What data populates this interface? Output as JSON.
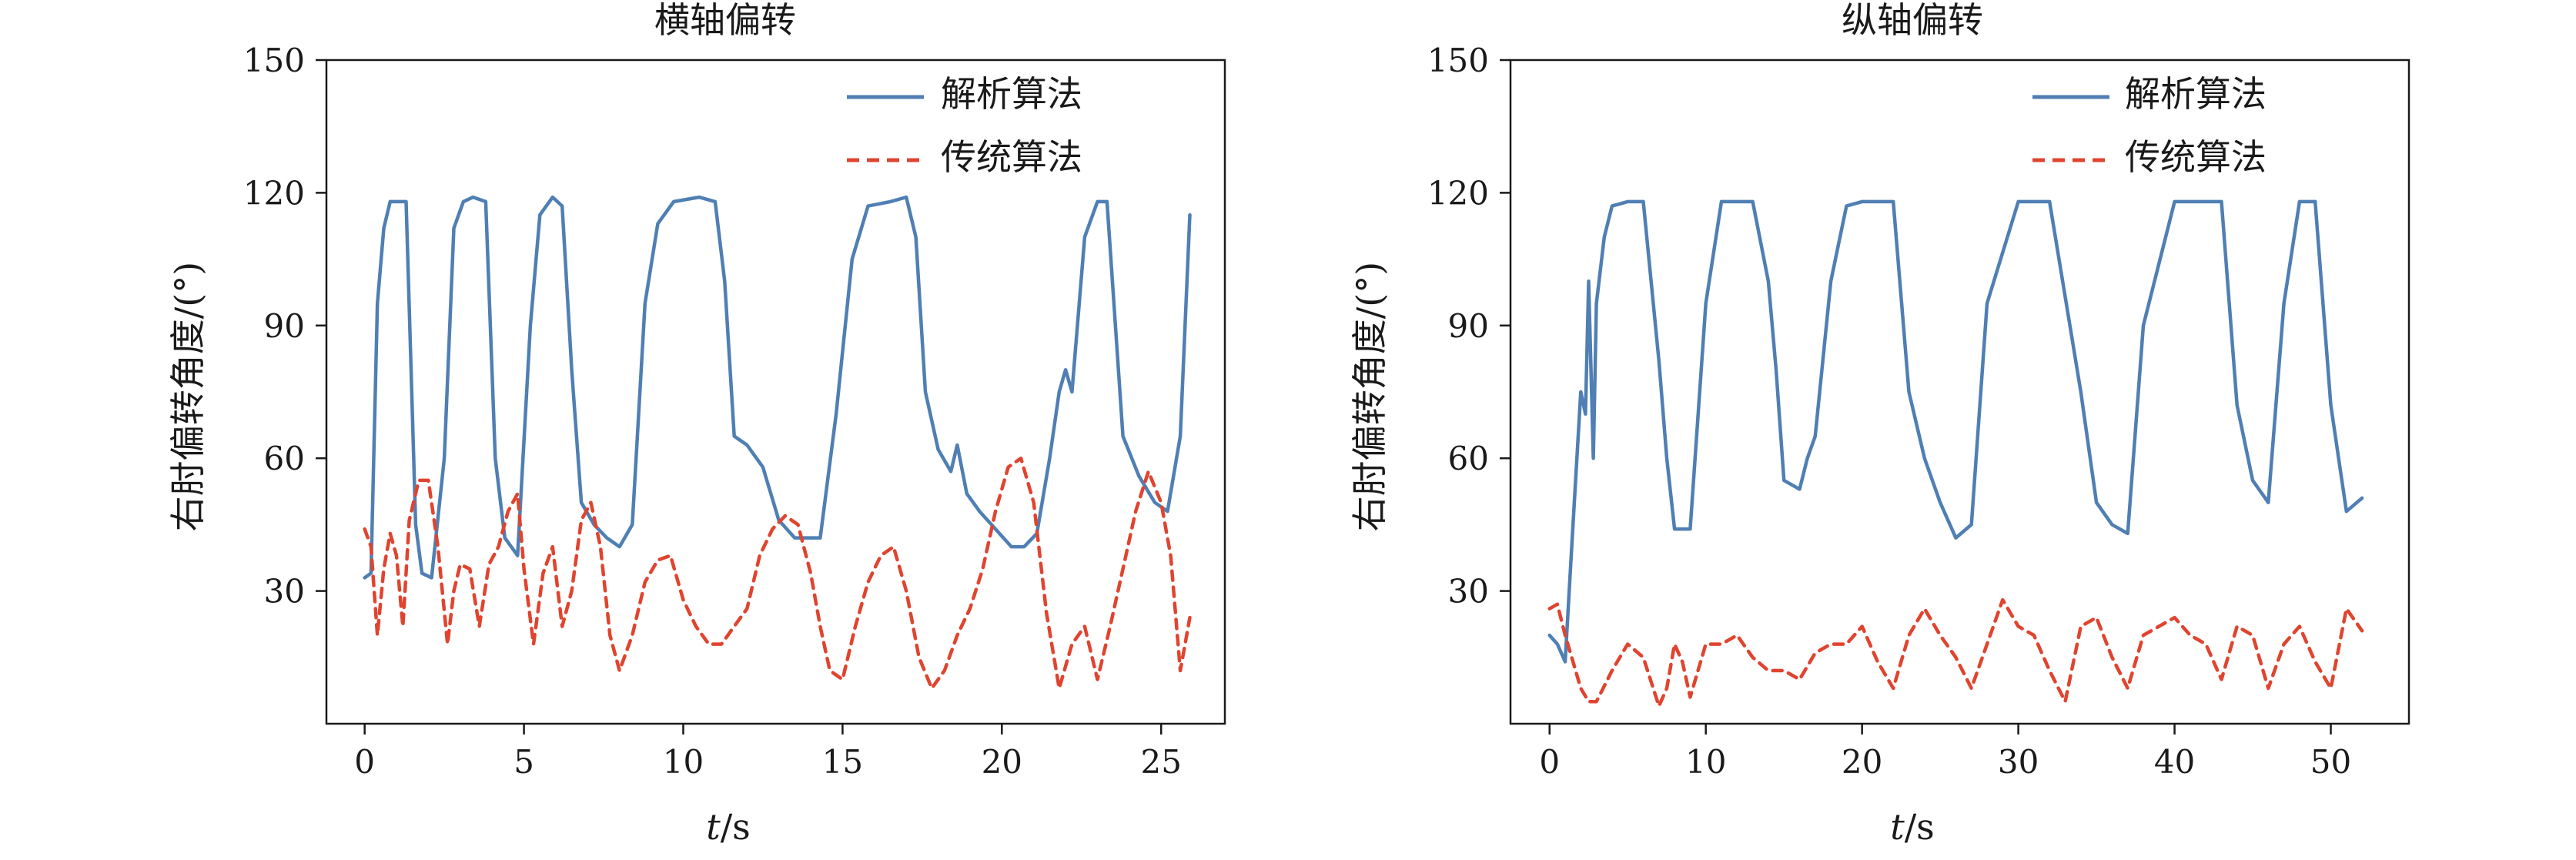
{
  "chart_data": [
    {
      "type": "line",
      "title": "横轴偏转",
      "xlabel_italic": "t",
      "xlabel_unit": "/s",
      "ylabel": "右肘偏转角度/(°)",
      "xlim": [
        -1.2,
        27.0
      ],
      "ylim": [
        0,
        150
      ],
      "xticks": [
        0,
        5,
        10,
        15,
        20,
        25
      ],
      "yticks": [
        30,
        60,
        90,
        120,
        150
      ],
      "legend_position": "top-right",
      "series": [
        {
          "name": "解析算法",
          "color": "#4f7fb3",
          "style": "solid",
          "x": [
            0,
            0.2,
            0.4,
            0.6,
            0.8,
            1.0,
            1.3,
            1.6,
            1.8,
            2.1,
            2.5,
            2.8,
            3.1,
            3.4,
            3.8,
            4.1,
            4.4,
            4.8,
            5.2,
            5.5,
            5.9,
            6.2,
            6.5,
            6.8,
            7.2,
            7.6,
            8.0,
            8.4,
            8.8,
            9.2,
            9.7,
            10.5,
            11.0,
            11.3,
            11.6,
            12.0,
            12.5,
            13.0,
            13.5,
            14.0,
            14.3,
            14.8,
            15.3,
            15.8,
            16.5,
            17.0,
            17.3,
            17.6,
            18.0,
            18.4,
            18.6,
            18.9,
            19.3,
            19.8,
            20.3,
            20.7,
            21.1,
            21.5,
            21.8,
            22.0,
            22.2,
            22.6,
            23.0,
            23.3,
            23.8,
            24.3,
            24.8,
            25.2,
            25.6,
            25.9
          ],
          "y": [
            33,
            34,
            95,
            112,
            118,
            118,
            118,
            45,
            34,
            33,
            60,
            112,
            118,
            119,
            118,
            60,
            42,
            38,
            90,
            115,
            119,
            117,
            80,
            50,
            45,
            42,
            40,
            45,
            95,
            113,
            118,
            119,
            118,
            100,
            65,
            63,
            58,
            46,
            42,
            42,
            42,
            70,
            105,
            117,
            118,
            119,
            110,
            75,
            62,
            57,
            63,
            52,
            48,
            44,
            40,
            40,
            43,
            60,
            75,
            80,
            75,
            110,
            118,
            118,
            65,
            56,
            50,
            48,
            65,
            115
          ]
        },
        {
          "name": "传统算法",
          "color": "#e0442f",
          "style": "dashed",
          "x": [
            0,
            0.2,
            0.4,
            0.6,
            0.8,
            1.0,
            1.2,
            1.4,
            1.7,
            2.0,
            2.3,
            2.6,
            2.8,
            3.0,
            3.3,
            3.6,
            3.9,
            4.2,
            4.5,
            4.8,
            5.0,
            5.3,
            5.6,
            5.9,
            6.2,
            6.5,
            6.8,
            7.1,
            7.4,
            7.7,
            8.0,
            8.4,
            8.8,
            9.2,
            9.6,
            10.0,
            10.4,
            10.8,
            11.2,
            11.6,
            12.0,
            12.4,
            12.8,
            13.2,
            13.6,
            14.0,
            14.3,
            14.6,
            15.0,
            15.4,
            15.8,
            16.2,
            16.6,
            17.0,
            17.4,
            17.8,
            18.2,
            18.6,
            19.0,
            19.4,
            19.8,
            20.2,
            20.6,
            21.0,
            21.4,
            21.8,
            22.2,
            22.6,
            23.0,
            23.4,
            23.8,
            24.2,
            24.6,
            25.0,
            25.3,
            25.6,
            25.9
          ],
          "y": [
            44,
            40,
            20,
            35,
            43,
            38,
            22,
            46,
            55,
            55,
            40,
            18,
            30,
            36,
            35,
            22,
            36,
            40,
            48,
            52,
            35,
            18,
            34,
            40,
            22,
            30,
            46,
            50,
            40,
            20,
            12,
            20,
            32,
            37,
            38,
            28,
            22,
            18,
            18,
            22,
            26,
            38,
            44,
            47,
            45,
            34,
            22,
            12,
            10,
            22,
            32,
            38,
            40,
            30,
            15,
            8,
            12,
            20,
            26,
            35,
            48,
            58,
            60,
            50,
            25,
            8,
            18,
            22,
            10,
            22,
            35,
            48,
            57,
            50,
            38,
            12,
            24
          ]
        }
      ]
    },
    {
      "type": "line",
      "title": "纵轴偏转",
      "xlabel_italic": "t",
      "xlabel_unit": "/s",
      "ylabel": "右肘偏转角度/(°)",
      "xlim": [
        -2.5,
        55.0
      ],
      "ylim": [
        0,
        150
      ],
      "xticks": [
        0,
        10,
        20,
        30,
        40,
        50
      ],
      "yticks": [
        30,
        60,
        90,
        120,
        150
      ],
      "legend_position": "top-right",
      "series": [
        {
          "name": "解析算法",
          "color": "#4f7fb3",
          "style": "solid",
          "x": [
            0,
            0.5,
            1.0,
            1.5,
            2.0,
            2.3,
            2.5,
            2.8,
            3.0,
            3.5,
            4.0,
            5.0,
            6.0,
            7.0,
            7.5,
            8.0,
            9.0,
            10.0,
            11.0,
            12.0,
            13.0,
            14.0,
            14.5,
            15.0,
            16.0,
            16.5,
            17.0,
            18.0,
            19.0,
            20.0,
            22.0,
            23.0,
            24.0,
            25.0,
            26.0,
            27.0,
            28.0,
            30.0,
            31.0,
            32.0,
            34.0,
            35.0,
            36.0,
            37.0,
            38.0,
            40.0,
            41.0,
            42.0,
            43.0,
            44.0,
            45.0,
            46.0,
            47.0,
            48.0,
            49.0,
            50.0,
            51.0,
            52.0
          ],
          "y": [
            20,
            18,
            14,
            45,
            75,
            70,
            100,
            60,
            95,
            110,
            117,
            118,
            118,
            82,
            60,
            44,
            44,
            95,
            118,
            118,
            118,
            100,
            80,
            55,
            53,
            60,
            65,
            100,
            117,
            118,
            118,
            75,
            60,
            50,
            42,
            45,
            95,
            118,
            118,
            118,
            75,
            50,
            45,
            43,
            90,
            118,
            118,
            118,
            118,
            72,
            55,
            50,
            95,
            118,
            118,
            72,
            48,
            51
          ]
        },
        {
          "name": "传统算法",
          "color": "#e0442f",
          "style": "dashed",
          "x": [
            0,
            0.5,
            1.0,
            1.5,
            2.0,
            2.5,
            3.0,
            4.0,
            5.0,
            6.0,
            7.0,
            7.5,
            8.0,
            8.5,
            9.0,
            10.0,
            11.0,
            12.0,
            13.0,
            14.0,
            15.0,
            16.0,
            17.0,
            18.0,
            19.0,
            20.0,
            21.0,
            22.0,
            23.0,
            24.0,
            25.0,
            26.0,
            27.0,
            28.0,
            29.0,
            30.0,
            31.0,
            32.0,
            33.0,
            34.0,
            35.0,
            36.0,
            37.0,
            38.0,
            39.0,
            40.0,
            41.0,
            42.0,
            43.0,
            44.0,
            45.0,
            46.0,
            47.0,
            48.0,
            49.0,
            50.0,
            51.0,
            52.0
          ],
          "y": [
            26,
            27,
            20,
            14,
            8,
            5,
            5,
            12,
            18,
            15,
            4,
            8,
            18,
            14,
            6,
            18,
            18,
            20,
            15,
            12,
            12,
            10,
            16,
            18,
            18,
            22,
            14,
            8,
            20,
            26,
            20,
            15,
            8,
            18,
            28,
            22,
            20,
            12,
            5,
            22,
            24,
            15,
            8,
            20,
            22,
            24,
            20,
            18,
            10,
            22,
            20,
            8,
            18,
            22,
            14,
            8,
            26,
            21
          ]
        }
      ]
    }
  ]
}
